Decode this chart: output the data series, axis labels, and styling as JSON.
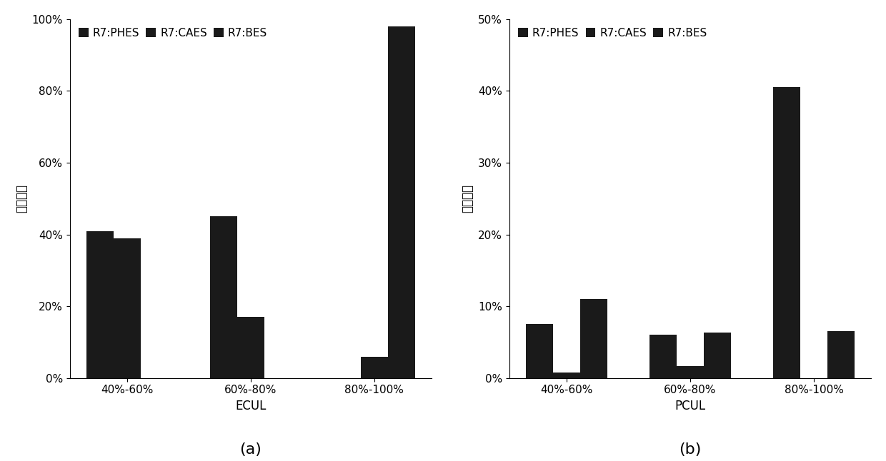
{
  "chart_a": {
    "categories": [
      "40%-60%",
      "60%-80%",
      "80%-100%"
    ],
    "xlabel": "ECUL",
    "ylabel": "概率密度",
    "ylim": [
      0,
      1.0
    ],
    "yticks": [
      0.0,
      0.2,
      0.4,
      0.6,
      0.8,
      1.0
    ],
    "series": {
      "R7:PHES": [
        0.41,
        0.45,
        0.0
      ],
      "R7:CAES": [
        0.39,
        0.17,
        0.06
      ],
      "R7:BES": [
        0.0,
        0.0,
        0.98
      ]
    },
    "label": "(a)"
  },
  "chart_b": {
    "categories": [
      "40%-60%",
      "60%-80%",
      "80%-100%"
    ],
    "xlabel": "PCUL",
    "ylabel": "概率密度",
    "ylim": [
      0,
      0.5
    ],
    "yticks": [
      0.0,
      0.1,
      0.2,
      0.3,
      0.4,
      0.5
    ],
    "series": {
      "R7:PHES": [
        0.075,
        0.06,
        0.405
      ],
      "R7:CAES": [
        0.008,
        0.017,
        0.0
      ],
      "R7:BES": [
        0.11,
        0.063,
        0.065
      ]
    },
    "label": "(b)"
  },
  "legend_labels": [
    "R7:PHES",
    "R7:CAES",
    "R7:BES"
  ],
  "bar_color": "#1a1a1a",
  "bar_width": 0.22,
  "background_color": "#ffffff",
  "axis_fontsize": 12,
  "tick_fontsize": 11,
  "legend_fontsize": 11,
  "sublabel_fontsize": 16
}
